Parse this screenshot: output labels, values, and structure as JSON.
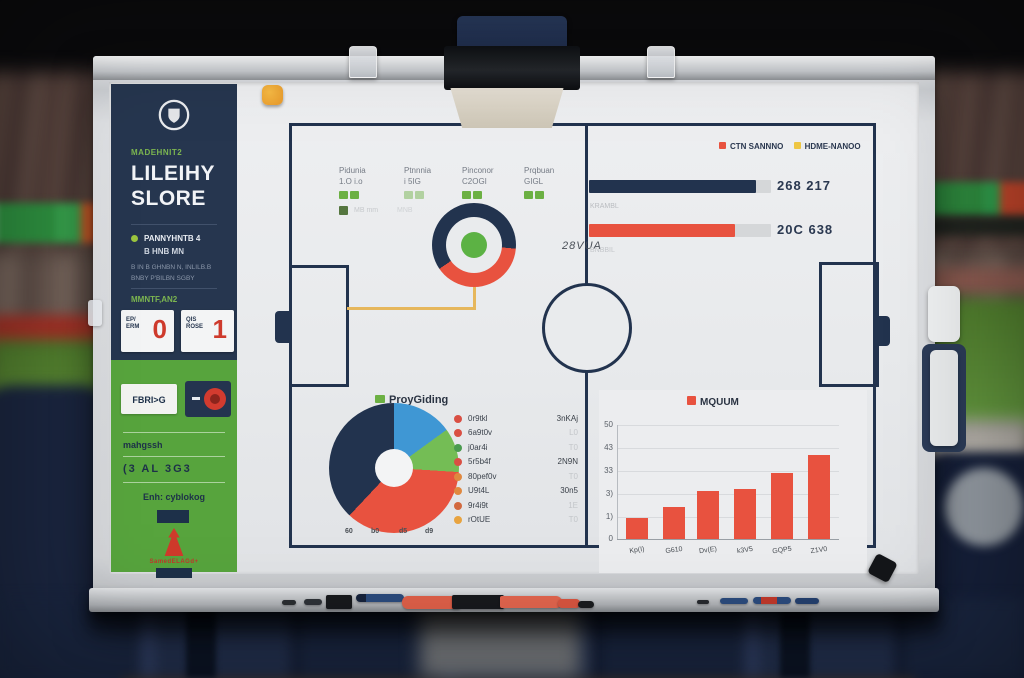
{
  "scene": {
    "colors": {
      "navy": "#22334e",
      "sidebar_navy": "#26364f",
      "green": "#57a43d",
      "red": "#e8523f",
      "yellow": "#eec643",
      "accent_green": "#6cb043",
      "board": "#e9ebed",
      "score_red": "#ce3a2c"
    }
  },
  "sidebar": {
    "crest_icon": "club-crest-icon",
    "eyebrow": "MADEHNIT2",
    "title_line1": "LILEIHY",
    "title_line2": "SLORE",
    "bullet_label": "PANNYHNTB 4",
    "bullet_sub": "B HNB MN",
    "fine_print_1": "B IN B GHNBN N, INLILB.B",
    "fine_print_2": "BNBY P'BILBN SGBY",
    "score_label": "MMNTF,AN2",
    "scoreboard": [
      {
        "team": "EP/ ERM",
        "score": "0"
      },
      {
        "team": "QIS ROSE",
        "score": "1"
      }
    ],
    "button_label": "FBRI>G",
    "badge_icon": "red-target-icon",
    "row_text_1": "mahgssh",
    "row_text_2": "(3 AL 3G3",
    "row_text_3": "Enh: cyblokog",
    "brand_icon": "red-crest-triangle-icon",
    "brand_text": "SamedELAGd+"
  },
  "pitch_stats": {
    "columns": [
      {
        "line1": "Pidunia",
        "line2": "1.O i.o"
      },
      {
        "line1": "Ptnnnia",
        "line2": "i 5IG"
      },
      {
        "line1": "Pinconor",
        "line2": "C2OGI"
      },
      {
        "line1": "Prqbuan",
        "line2": "GIGL"
      }
    ],
    "note_text": "MB mm",
    "note_text_2": "MNB",
    "donut_label": "28VUA"
  },
  "top_bars": {
    "legend": [
      {
        "label": "CTN SANNNO",
        "color": "#e8523f"
      },
      {
        "label": "HDME-NANOO",
        "color": "#eec643"
      }
    ],
    "rows": [
      {
        "value": "268 217",
        "sub": "KRAMBL"
      },
      {
        "value": "20C 638",
        "sub": "BNBBIL"
      }
    ]
  },
  "pie_panel": {
    "title": "ProyGiding",
    "x_ticks": [
      "60",
      "b0",
      "d5",
      "d9"
    ],
    "legend": [
      {
        "label": "0r9tkl",
        "value": "3nKAj",
        "color": "#d94f43"
      },
      {
        "label": "6a9t0v",
        "value": "L0",
        "color": "#d94f43"
      },
      {
        "label": "j0ar4i",
        "value": "T0",
        "color": "#4a9b4f"
      },
      {
        "label": "5r5b4f",
        "value": "2N9N",
        "color": "#d94f43"
      },
      {
        "label": "80pef0v",
        "value": "T0",
        "color": "#e0883f"
      },
      {
        "label": "U9t4L",
        "value": "30n5",
        "color": "#e0883f"
      },
      {
        "label": "9r4i9t",
        "value": "1E",
        "color": "#d2693f"
      },
      {
        "label": "rOtUE",
        "value": "T0",
        "color": "#e8a33f"
      }
    ]
  },
  "season_chart": {
    "legend_label": "MQUUM",
    "legend_color": "#e8523f",
    "y_ticks": [
      "50",
      "43",
      "33",
      "3)",
      "1)",
      "0"
    ],
    "x_labels": [
      "Kp(I)",
      "G610",
      "Dv(E)",
      "k3V5",
      "GQP5",
      "Z1V0"
    ]
  },
  "chart_data": [
    {
      "id": "possession-donut",
      "type": "pie",
      "start_deg": 95,
      "segments": [
        {
          "name": "away",
          "value": 39,
          "color": "#e8523f"
        },
        {
          "name": "home",
          "value": 61,
          "color": "#22334e"
        }
      ],
      "center_marker": "green-dot",
      "annotation": "28VUA",
      "legend_position": "right"
    },
    {
      "id": "distance-bars",
      "type": "bar",
      "orientation": "horizontal",
      "categories": [
        "CTN SANNNO",
        "HDME-NANOO"
      ],
      "value_labels": [
        "268 217",
        "20C 638"
      ],
      "fractions": [
        0.92,
        0.8
      ],
      "colors": [
        "#22334e",
        "#e8523f"
      ],
      "sub_labels": [
        "KRAMBL",
        "BNBBIL"
      ]
    },
    {
      "id": "breakdown-pie",
      "type": "pie",
      "start_deg": 0,
      "title": "ProyGiding",
      "segments": [
        {
          "label": "blue",
          "value": 15,
          "color": "#3f97d4"
        },
        {
          "label": "green",
          "value": 11,
          "color": "#74bd55"
        },
        {
          "label": "red",
          "value": 36,
          "color": "#e8523f"
        },
        {
          "label": "navy",
          "value": 38,
          "color": "#22334e"
        }
      ]
    },
    {
      "id": "season-bars",
      "type": "bar",
      "orientation": "vertical",
      "categories": [
        "Kp(I)",
        "G610",
        "Dv(E)",
        "k3V5",
        "GQP5",
        "Z1V0"
      ],
      "values": [
        9,
        14,
        21,
        22,
        29,
        37
      ],
      "ylim": [
        0,
        50
      ],
      "color": "#e8523f",
      "grid": true,
      "legend": "MQUUM",
      "legend_position": "top"
    }
  ]
}
